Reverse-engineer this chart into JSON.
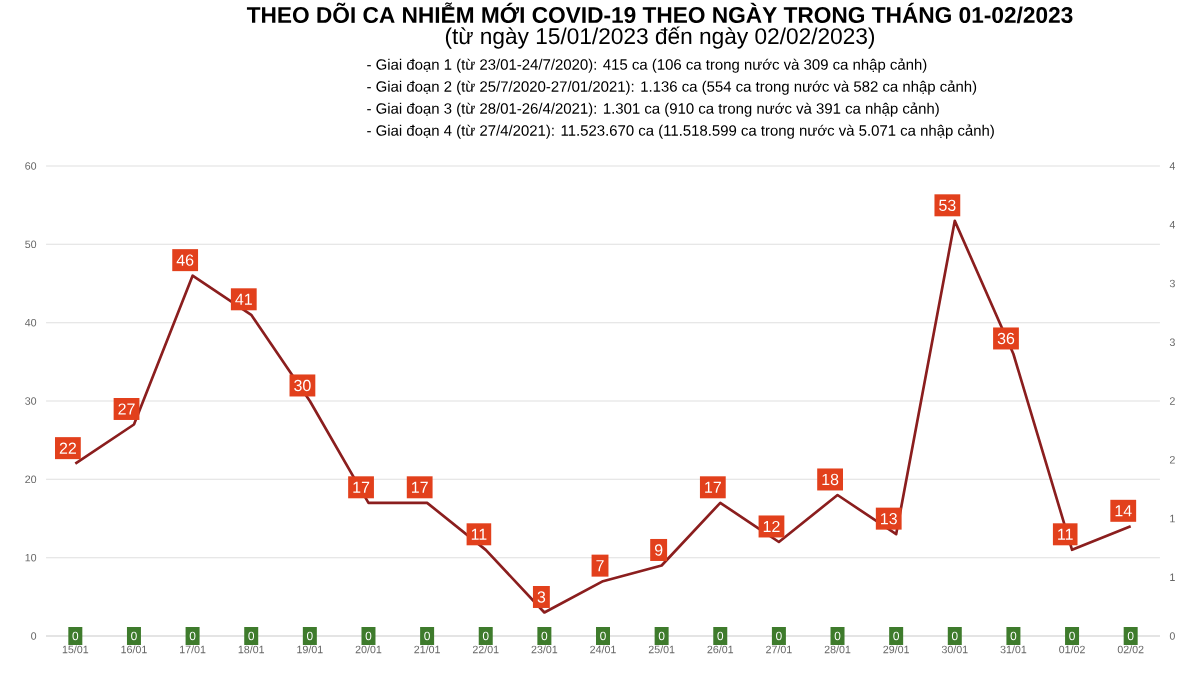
{
  "chart_data": {
    "type": "line",
    "title": "THEO DÕI CA NHIỄM MỚI COVID-19 THEO NGÀY TRONG THÁNG 01-02/2023",
    "subtitle": "(từ ngày 15/01/2023 đến ngày 02/02/2023)",
    "annotations": [
      "- Giai đoạn 1 (từ 23/01-24/7/2020): 415 ca (106 ca trong nước và 309 ca nhập cảnh)",
      "- Giai đoạn 2 (từ 25/7/2020-27/01/2021): 1.136 ca (554 ca trong nước và 582 ca nhập cảnh)",
      "- Giai đoạn 3 (từ 28/01-26/4/2021): 1.301 ca (910 ca trong nước và 391 ca nhập cảnh)",
      "- Giai đoạn 4 (từ 27/4/2021): 11.523.670 ca (11.518.599 ca trong nước và 5.071 ca nhập cảnh)"
    ],
    "categories": [
      "15/01",
      "16/01",
      "17/01",
      "18/01",
      "19/01",
      "20/01",
      "21/01",
      "22/01",
      "23/01",
      "24/01",
      "25/01",
      "26/01",
      "27/01",
      "28/01",
      "29/01",
      "30/01",
      "31/01",
      "01/02",
      "02/02"
    ],
    "series": [
      {
        "color": "#8b1e1e",
        "marker": "none",
        "values": [
          22,
          27,
          46,
          41,
          30,
          17,
          17,
          11,
          3,
          7,
          9,
          17,
          12,
          18,
          13,
          53,
          36,
          11,
          14
        ]
      },
      {
        "type": "scatter",
        "axis": "y2",
        "color": "#3e7b2c",
        "marker": "square",
        "values": [
          0,
          0,
          0,
          0,
          0,
          0,
          0,
          0,
          0,
          0,
          0,
          0,
          0,
          0,
          0,
          0,
          0,
          0,
          0
        ]
      }
    ],
    "data_labels": true,
    "grid": "y",
    "ylim": [
      0,
      60
    ],
    "yticks": [
      0,
      10,
      20,
      30,
      40,
      50,
      60
    ],
    "y2lim": [
      0,
      4
    ],
    "y2ticks": [
      0,
      {
        "value": 0.5,
        "label": "1"
      },
      {
        "value": 1,
        "label": "1"
      },
      {
        "value": 1.5,
        "label": "2"
      },
      {
        "value": 2,
        "label": "2"
      },
      {
        "value": 2.5,
        "label": "3"
      },
      {
        "value": 3,
        "label": "3"
      },
      {
        "value": 3.5,
        "label": "4"
      },
      {
        "value": 4,
        "label": "4"
      }
    ]
  }
}
